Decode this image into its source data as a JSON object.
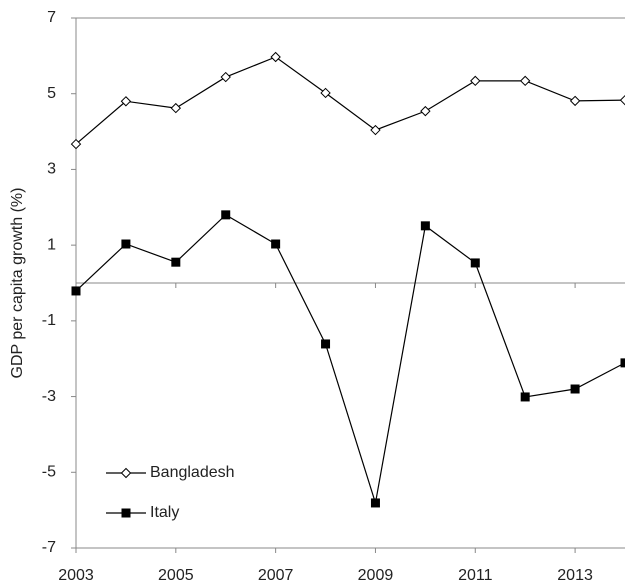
{
  "chart_data": {
    "type": "line",
    "y_label": "GDP per capita growth (%)",
    "x": [
      2003,
      2004,
      2005,
      2006,
      2007,
      2008,
      2009,
      2010,
      2011,
      2012,
      2013,
      2014
    ],
    "series": [
      {
        "name": "Bangladesh",
        "color": "#000000",
        "marker": "open-diamond",
        "values": [
          3.67,
          4.8,
          4.62,
          5.44,
          5.97,
          5.02,
          4.04,
          4.54,
          5.34,
          5.34,
          4.81,
          4.83
        ]
      },
      {
        "name": "Italy",
        "color": "#000000",
        "marker": "filled-square",
        "values": [
          -0.21,
          1.03,
          0.55,
          1.8,
          1.03,
          -1.61,
          -5.81,
          1.51,
          0.53,
          -3.01,
          -2.8,
          -2.11
        ]
      }
    ],
    "xlim": [
      2003,
      2014
    ],
    "xticks": [
      2003,
      2005,
      2007,
      2009,
      2011,
      2013
    ],
    "ylim": [
      -7,
      7
    ],
    "yticks": [
      -7,
      -5,
      -3,
      -1,
      1,
      3,
      5,
      7
    ],
    "grid": false,
    "legend": "lower left"
  }
}
